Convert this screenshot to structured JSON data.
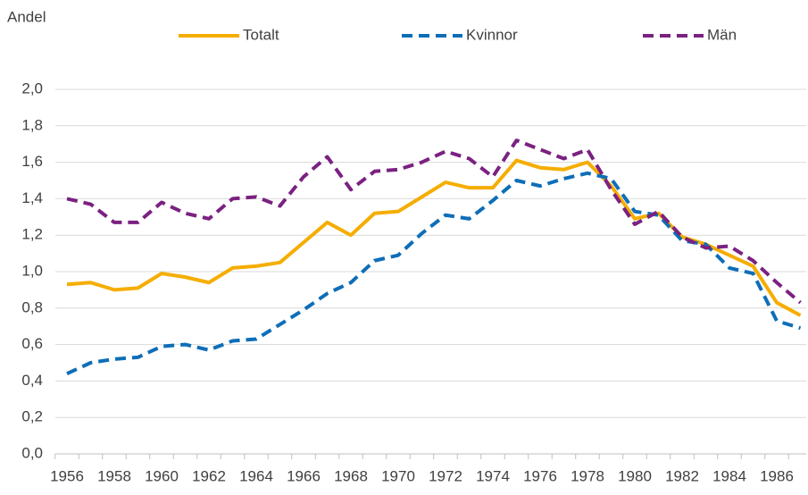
{
  "chart_data": {
    "type": "line",
    "y_label": "Andel",
    "categories": [
      1956,
      null,
      1958,
      null,
      1960,
      null,
      1962,
      null,
      1964,
      null,
      1966,
      null,
      1968,
      null,
      1970,
      null,
      1972,
      null,
      1974,
      null,
      1976,
      null,
      1978,
      null,
      1980,
      null,
      1982,
      null,
      1984,
      null,
      1986,
      null
    ],
    "series": [
      {
        "name": "Totalt",
        "color": "#f5ad00",
        "dashed": false,
        "values": [
          0.93,
          0.94,
          0.9,
          0.91,
          0.99,
          0.97,
          0.94,
          1.02,
          1.03,
          1.05,
          1.16,
          1.27,
          1.2,
          1.32,
          1.33,
          1.41,
          1.49,
          1.46,
          1.46,
          1.61,
          1.57,
          1.56,
          1.6,
          1.47,
          1.29,
          1.32,
          1.19,
          1.15,
          1.09,
          1.03,
          0.83,
          0.76
        ]
      },
      {
        "name": "Kvinnor",
        "color": "#0e6eb8",
        "dashed": true,
        "values": [
          0.44,
          0.5,
          0.52,
          0.53,
          0.59,
          0.6,
          0.57,
          0.62,
          0.63,
          0.71,
          0.79,
          0.88,
          0.94,
          1.06,
          1.09,
          1.21,
          1.31,
          1.29,
          1.39,
          1.5,
          1.47,
          1.51,
          1.54,
          1.51,
          1.33,
          1.31,
          1.17,
          1.15,
          1.02,
          0.99,
          0.73,
          0.69
        ]
      },
      {
        "name": "Män",
        "color": "#7b2181",
        "dashed": true,
        "values": [
          1.4,
          1.37,
          1.27,
          1.27,
          1.38,
          1.32,
          1.29,
          1.4,
          1.41,
          1.36,
          1.52,
          1.63,
          1.45,
          1.55,
          1.56,
          1.6,
          1.66,
          1.62,
          1.52,
          1.72,
          1.67,
          1.62,
          1.67,
          1.45,
          1.26,
          1.33,
          1.19,
          1.13,
          1.14,
          1.06,
          0.94,
          0.83
        ]
      }
    ],
    "ylim": [
      0,
      2
    ],
    "yticks": [
      {
        "value": 0,
        "label": "0,0"
      },
      {
        "value": 0.2,
        "label": "0,2"
      },
      {
        "value": 0.4,
        "label": "0,4"
      },
      {
        "value": 0.6,
        "label": "0,6"
      },
      {
        "value": 0.8,
        "label": "0,8"
      },
      {
        "value": 1,
        "label": "1,0"
      },
      {
        "value": 1.2,
        "label": "1,2"
      },
      {
        "value": 1.4,
        "label": "1,4"
      },
      {
        "value": 1.6,
        "label": "1,6"
      },
      {
        "value": 1.8,
        "label": "1,8"
      },
      {
        "value": 2,
        "label": "2,0"
      }
    ],
    "grid": true,
    "legend": "top"
  }
}
